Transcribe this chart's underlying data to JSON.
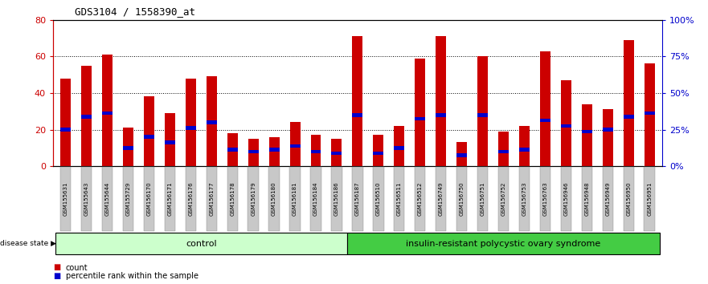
{
  "title": "GDS3104 / 1558390_at",
  "samples": [
    "GSM155631",
    "GSM155643",
    "GSM155644",
    "GSM155729",
    "GSM156170",
    "GSM156171",
    "GSM156176",
    "GSM156177",
    "GSM156178",
    "GSM156179",
    "GSM156180",
    "GSM156181",
    "GSM156184",
    "GSM156186",
    "GSM156187",
    "GSM156510",
    "GSM156511",
    "GSM156512",
    "GSM156749",
    "GSM156750",
    "GSM156751",
    "GSM156752",
    "GSM156753",
    "GSM156763",
    "GSM156946",
    "GSM156948",
    "GSM156949",
    "GSM156950",
    "GSM156951"
  ],
  "counts": [
    48,
    55,
    61,
    21,
    38,
    29,
    48,
    49,
    18,
    15,
    16,
    24,
    17,
    15,
    71,
    17,
    22,
    59,
    71,
    13,
    60,
    19,
    22,
    63,
    47,
    34,
    31,
    69,
    56
  ],
  "percentile_ranks": [
    20,
    27,
    29,
    10,
    16,
    13,
    21,
    24,
    9,
    8,
    9,
    11,
    8,
    7,
    28,
    7,
    10,
    26,
    28,
    6,
    28,
    8,
    9,
    25,
    22,
    19,
    20,
    27,
    29
  ],
  "control_count": 14,
  "disease_count": 15,
  "bar_color": "#cc0000",
  "percentile_color": "#0000cc",
  "left_axis_color": "#cc0000",
  "right_axis_color": "#0000cc",
  "control_bg": "#ccffcc",
  "disease_bg": "#44cc44",
  "ylim_left": [
    0,
    80
  ],
  "ylim_right": [
    0,
    100
  ],
  "yticks_left": [
    0,
    20,
    40,
    60,
    80
  ],
  "yticks_right": [
    0,
    25,
    50,
    75,
    100
  ],
  "ytick_labels_right": [
    "0%",
    "25%",
    "50%",
    "75%",
    "100%"
  ],
  "grid_vals": [
    20,
    40,
    60
  ],
  "control_label": "control",
  "disease_label": "insulin-resistant polycystic ovary syndrome",
  "disease_state_label": "disease state",
  "legend_count_label": "count",
  "legend_percentile_label": "percentile rank within the sample",
  "xlabel_bg": "#c8c8c8"
}
